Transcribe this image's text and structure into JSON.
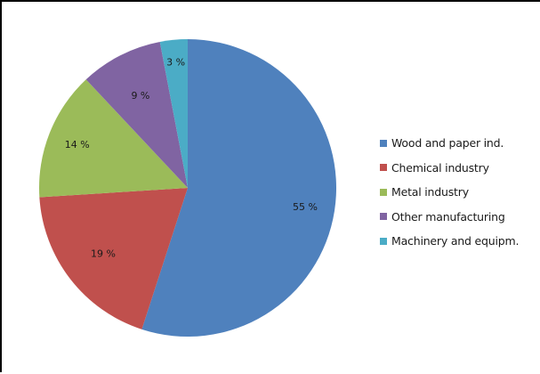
{
  "chart_data": {
    "type": "pie",
    "title": "",
    "categories": [
      "Wood and paper ind.",
      "Chemical industry",
      "Metal industry",
      "Other manufacturing",
      "Machinery and equipm."
    ],
    "values": [
      55,
      19,
      14,
      9,
      3
    ],
    "value_labels": [
      "55 %",
      "19 %",
      "14 %",
      "9 %",
      "3 %"
    ],
    "colors": [
      "#4F81BD",
      "#C0504D",
      "#9BBB59",
      "#8064A2",
      "#4BACC6"
    ],
    "start_angle": "12 o'clock",
    "direction": "clockwise",
    "legend_position": "right",
    "unit": "%"
  },
  "legend": {
    "items": [
      {
        "label": "Wood and paper ind.",
        "color": "#4F81BD"
      },
      {
        "label": "Chemical industry",
        "color": "#C0504D"
      },
      {
        "label": "Metal industry",
        "color": "#9BBB59"
      },
      {
        "label": "Other manufacturing",
        "color": "#8064A2"
      },
      {
        "label": "Machinery and equipm.",
        "color": "#4BACC6"
      }
    ]
  }
}
